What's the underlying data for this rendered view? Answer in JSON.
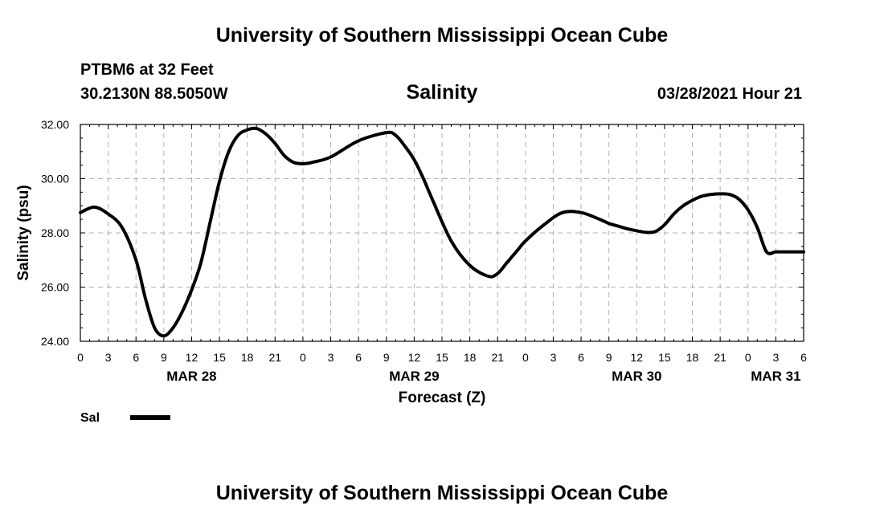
{
  "header": {
    "title": "University of Southern Mississippi Ocean Cube",
    "station": "PTBM6 at 32 Feet",
    "coords": "30.2130N  88.5050W",
    "plot_title": "Salinity",
    "timestamp": "03/28/2021 Hour 21"
  },
  "footer": {
    "title": "University of Southern Mississippi Ocean Cube"
  },
  "legend": {
    "label": "Sal"
  },
  "colors": {
    "line": "#000000",
    "grid": "#b0b0b0"
  },
  "chart_data": {
    "type": "line",
    "title": "Salinity",
    "xlabel": "Forecast (Z)",
    "ylabel": "Salinity (psu)",
    "xlim": [
      0,
      78
    ],
    "ylim": [
      24,
      32
    ],
    "yticks": [
      24,
      26,
      28,
      30,
      32
    ],
    "ytick_labels": [
      "24.00",
      "26.00",
      "28.00",
      "30.00",
      "32.00"
    ],
    "xtick_labels": [
      "0",
      "3",
      "6",
      "9",
      "12",
      "15",
      "18",
      "21",
      "0",
      "3",
      "6",
      "9",
      "12",
      "15",
      "18",
      "21",
      "0",
      "3",
      "6",
      "9",
      "12",
      "15",
      "18",
      "21",
      "0",
      "3",
      "6"
    ],
    "date_labels": [
      {
        "hour": 12,
        "label": "MAR 28"
      },
      {
        "hour": 36,
        "label": "MAR 29"
      },
      {
        "hour": 60,
        "label": "MAR 30"
      },
      {
        "hour": 75,
        "label": "MAR 31"
      }
    ],
    "grid": true,
    "series": [
      {
        "name": "Sal",
        "x": [
          0,
          1.5,
          3,
          4.5,
          6,
          7,
          8,
          9,
          10,
          11,
          12,
          13,
          14,
          15,
          16,
          17,
          18,
          19,
          20,
          21,
          22,
          23,
          24,
          25,
          27,
          30,
          33,
          34,
          35,
          36,
          37,
          38,
          40,
          42,
          44,
          45,
          46,
          47,
          48,
          50,
          52,
          54,
          56,
          57,
          58,
          59,
          60,
          61,
          62,
          63,
          64,
          65,
          66,
          67,
          68,
          69,
          70,
          71,
          72,
          73,
          74,
          75,
          76,
          77,
          78
        ],
        "y": [
          28.75,
          28.95,
          28.7,
          28.2,
          27.0,
          25.6,
          24.5,
          24.2,
          24.5,
          25.1,
          25.9,
          26.9,
          28.4,
          29.9,
          31.0,
          31.6,
          31.8,
          31.85,
          31.65,
          31.3,
          30.85,
          30.6,
          30.55,
          30.6,
          30.8,
          31.4,
          31.7,
          31.6,
          31.2,
          30.7,
          30.0,
          29.2,
          27.7,
          26.8,
          26.4,
          26.5,
          26.9,
          27.3,
          27.7,
          28.3,
          28.75,
          28.75,
          28.5,
          28.35,
          28.25,
          28.15,
          28.08,
          28.02,
          28.05,
          28.3,
          28.7,
          29.0,
          29.2,
          29.35,
          29.42,
          29.44,
          29.42,
          29.25,
          28.85,
          28.2,
          27.3,
          27.3,
          27.3,
          27.3,
          27.3
        ]
      }
    ]
  }
}
